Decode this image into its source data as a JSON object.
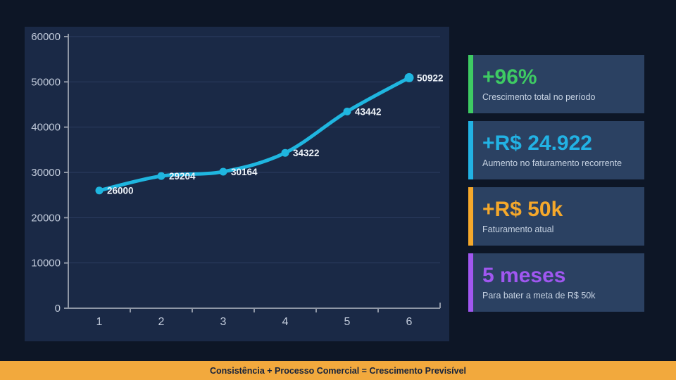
{
  "colors": {
    "background": "#0d1626",
    "panel": "#1a2946",
    "card_background": "#2b4162",
    "line": "#1fb6e0",
    "axis": "#8f97a6",
    "grid": "#2c3d61",
    "tick_label": "#c2cbdb",
    "data_label": "#eef3f9",
    "green": "#3ecb63",
    "cyan": "#22b2e4",
    "orange": "#f5a82b",
    "purple": "#a057f0",
    "footer_background": "#f2a93d",
    "footer_text": "#14213b"
  },
  "chart_data": {
    "type": "line",
    "title": "",
    "xlabel": "",
    "ylabel": "",
    "x_labels": [
      "1",
      "2",
      "3",
      "4",
      "5",
      "6"
    ],
    "values": [
      26000,
      29204,
      30164,
      34322,
      43442,
      50922
    ],
    "point_labels": [
      "26000",
      "29204",
      "30164",
      "34322",
      "43442",
      "50922"
    ],
    "y_ticks": [
      0,
      10000,
      20000,
      30000,
      40000,
      50000,
      60000
    ],
    "ylim": [
      0,
      60000
    ],
    "grid": "horizontal",
    "legend": "none",
    "smoothed": true
  },
  "cards": [
    {
      "value": "+96%",
      "label": "Crescimento total no período",
      "accent": "#3ecb63"
    },
    {
      "value": "+R$ 24.922",
      "label": "Aumento no faturamento recorrente",
      "accent": "#22b2e4"
    },
    {
      "value": "+R$ 50k",
      "label": "Faturamento atual",
      "accent": "#f5a82b"
    },
    {
      "value": "5 meses",
      "label": "Para bater a meta de R$ 50k",
      "accent": "#a057f0"
    }
  ],
  "footer": {
    "text": "Consistência + Processo Comercial = Crescimento Previsível"
  }
}
